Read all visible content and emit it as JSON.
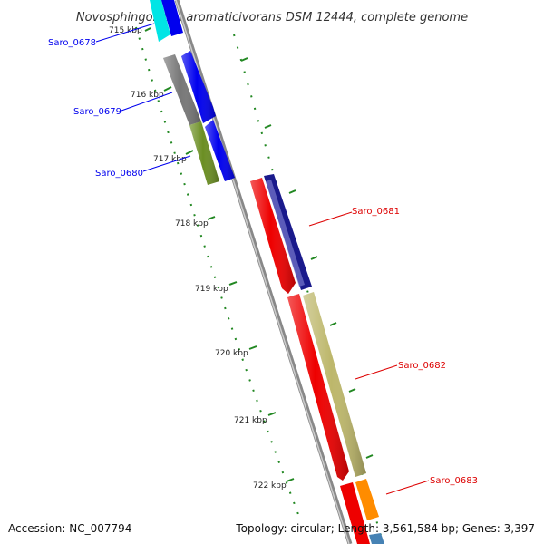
{
  "title": "Novosphingobium aromaticivorans DSM 12444, complete genome",
  "ticks": [
    "715 kbp",
    "716 kbp",
    "717 kbp",
    "718 kbp",
    "719 kbp",
    "720 kbp",
    "721 kbp",
    "722 kbp"
  ],
  "genes": {
    "forward": [
      {
        "name": "Saro_0678",
        "color": "#0000ee"
      },
      {
        "name": "Saro_0679",
        "color": "#0000ee"
      },
      {
        "name": "Saro_0680",
        "color": "#0000ee"
      }
    ],
    "reverse": [
      {
        "name": "Saro_0681",
        "color": "#dd0000"
      },
      {
        "name": "Saro_0682",
        "color": "#dd0000"
      },
      {
        "name": "Saro_0683",
        "color": "#dd0000"
      }
    ]
  },
  "colors": {
    "backbone": "#888888",
    "tick": "#228822",
    "cyan": "#00e5e5",
    "blue": "#0000ee",
    "gray": "#777777",
    "olive": "#6b8e23",
    "red": "#ee0000",
    "navy": "#1a1a8c",
    "khaki": "#bdb76b",
    "orange": "#ff8c00",
    "steelblue": "#4682b4"
  },
  "footer": {
    "accession": "Accession: NC_007794",
    "summary": "Topology: circular; Length: 3,561,584 bp; Genes: 3,397"
  }
}
